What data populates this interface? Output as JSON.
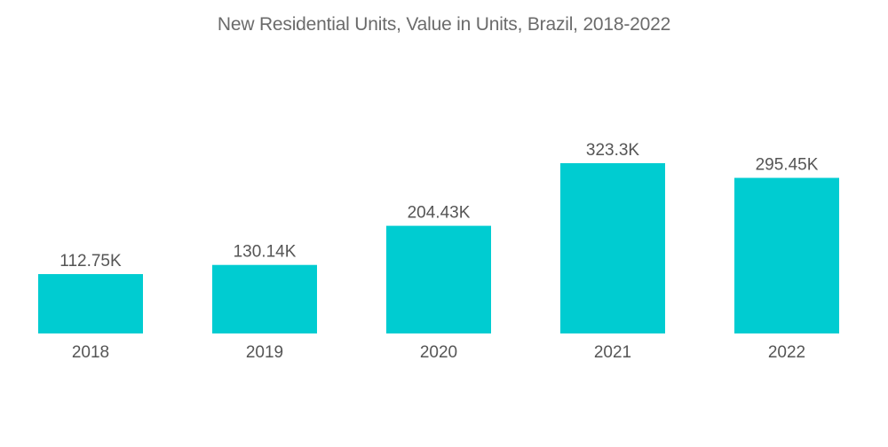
{
  "chart_data": {
    "type": "bar",
    "title": "New Residential Units, Value in Units, Brazil, 2018-2022",
    "xlabel": "",
    "ylabel": "",
    "categories": [
      "2018",
      "2019",
      "2020",
      "2021",
      "2022"
    ],
    "values": [
      112.75,
      130.14,
      204.43,
      323.3,
      295.45
    ],
    "value_labels": [
      "112.75K",
      "130.14K",
      "204.43K",
      "323.3K",
      "295.45K"
    ],
    "unit": "K",
    "ylim": [
      0,
      323.3
    ],
    "grid": false,
    "legend": "none",
    "bar_color": "#00ccd1"
  }
}
